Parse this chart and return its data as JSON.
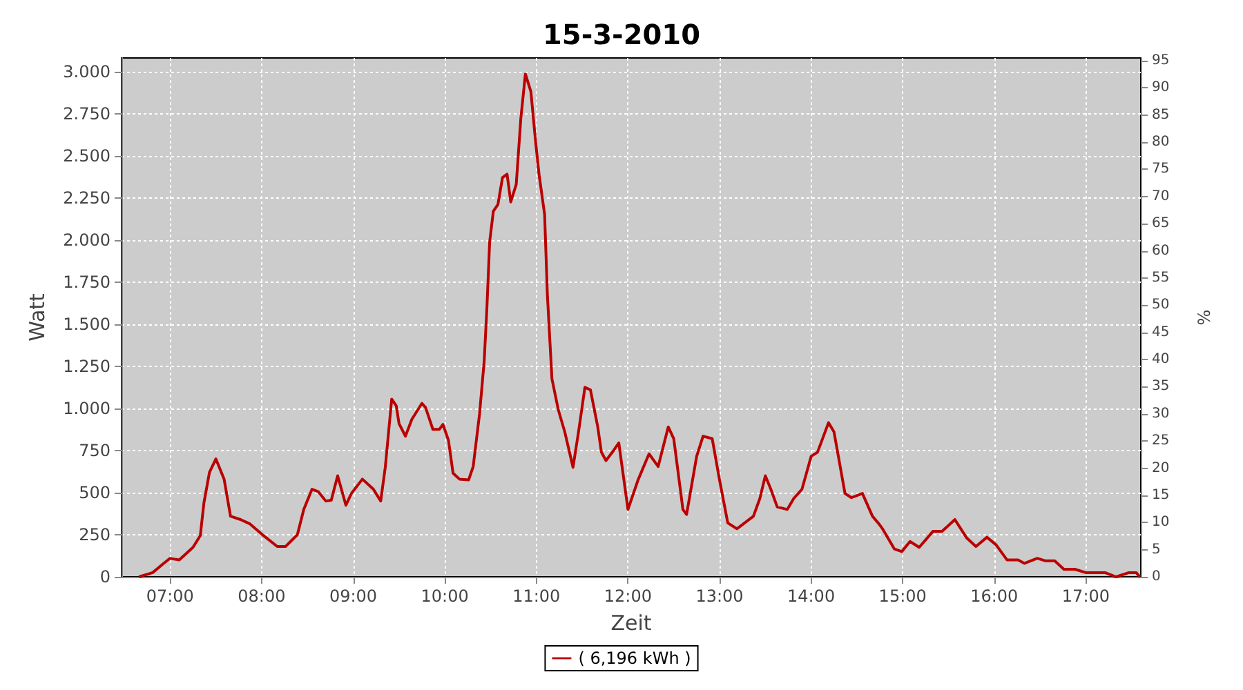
{
  "chart_data": {
    "type": "line",
    "title": "15-3-2010",
    "xlabel": "Zeit",
    "ylabel": "Watt",
    "y2label": "%",
    "xlim": [
      6.47,
      17.6
    ],
    "xticks": [
      {
        "value": 7,
        "label": "07:00"
      },
      {
        "value": 8,
        "label": "08:00"
      },
      {
        "value": 9,
        "label": "09:00"
      },
      {
        "value": 10,
        "label": "10:00"
      },
      {
        "value": 11,
        "label": "11:00"
      },
      {
        "value": 12,
        "label": "12:00"
      },
      {
        "value": 13,
        "label": "13:00"
      },
      {
        "value": 14,
        "label": "14:00"
      },
      {
        "value": 15,
        "label": "15:00"
      },
      {
        "value": 16,
        "label": "16:00"
      },
      {
        "value": 17,
        "label": "17:00"
      }
    ],
    "ylim": [
      0,
      3080
    ],
    "yticks": [
      0,
      250,
      500,
      750,
      {
        "value": 1000,
        "label": "1.000"
      },
      {
        "value": 1250,
        "label": "1.250"
      },
      {
        "value": 1500,
        "label": "1.500"
      },
      {
        "value": 1750,
        "label": "1.750"
      },
      {
        "value": 2000,
        "label": "2.000"
      },
      {
        "value": 2250,
        "label": "2.250"
      },
      {
        "value": 2500,
        "label": "2.500"
      },
      {
        "value": 2750,
        "label": "2.750"
      },
      {
        "value": 3000,
        "label": "3.000"
      }
    ],
    "y2lim": [
      0,
      95.5
    ],
    "y2ticks": [
      0,
      5,
      10,
      15,
      20,
      25,
      30,
      35,
      40,
      45,
      50,
      55,
      60,
      65,
      70,
      75,
      80,
      85,
      90,
      95
    ],
    "grid": true,
    "legend": "bottom",
    "marker": "none",
    "line_style": "solid",
    "series": [
      {
        "name": "( 6,196 kWh )",
        "color": "#bb0000",
        "x": [
          6.66,
          6.81,
          6.93,
          7.0,
          7.1,
          7.25,
          7.33,
          7.37,
          7.43,
          7.5,
          7.59,
          7.66,
          7.77,
          7.87,
          8.02,
          8.17,
          8.26,
          8.39,
          8.46,
          8.55,
          8.62,
          8.7,
          8.76,
          8.83,
          8.92,
          8.98,
          9.1,
          9.22,
          9.3,
          9.35,
          9.42,
          9.47,
          9.5,
          9.57,
          9.64,
          9.75,
          9.79,
          9.87,
          9.94,
          9.98,
          10.04,
          10.09,
          10.16,
          10.26,
          10.31,
          10.38,
          10.43,
          10.46,
          10.49,
          10.53,
          10.58,
          10.63,
          10.68,
          10.72,
          10.78,
          10.83,
          10.88,
          10.94,
          10.99,
          11.03,
          11.09,
          11.12,
          11.17,
          11.24,
          11.31,
          11.4,
          11.46,
          11.53,
          11.59,
          11.67,
          11.71,
          11.76,
          11.83,
          11.9,
          12.0,
          12.11,
          12.23,
          12.33,
          12.44,
          12.5,
          12.6,
          12.64,
          12.75,
          12.82,
          12.92,
          13.0,
          13.09,
          13.19,
          13.37,
          13.44,
          13.5,
          13.56,
          13.63,
          13.74,
          13.81,
          13.9,
          14.0,
          14.07,
          14.19,
          14.25,
          14.37,
          14.44,
          14.56,
          14.67,
          14.74,
          14.78,
          14.91,
          14.99,
          15.08,
          15.18,
          15.33,
          15.43,
          15.57,
          15.7,
          15.8,
          15.92,
          16.02,
          16.14,
          16.26,
          16.33,
          16.47,
          16.56,
          16.66,
          16.76,
          16.88,
          17.0,
          17.21,
          17.33,
          17.47,
          17.55,
          17.59
        ],
        "values": [
          0,
          25,
          80,
          110,
          100,
          175,
          245,
          440,
          620,
          700,
          580,
          360,
          340,
          315,
          245,
          180,
          180,
          250,
          400,
          520,
          505,
          450,
          455,
          600,
          425,
          495,
          580,
          520,
          450,
          650,
          1055,
          1015,
          910,
          835,
          935,
          1030,
          1005,
          875,
          875,
          905,
          810,
          615,
          580,
          575,
          655,
          970,
          1280,
          1600,
          1990,
          2170,
          2210,
          2370,
          2390,
          2225,
          2330,
          2720,
          2985,
          2880,
          2590,
          2385,
          2150,
          1675,
          1175,
          990,
          860,
          650,
          860,
          1125,
          1110,
          890,
          740,
          690,
          740,
          795,
          400,
          575,
          730,
          655,
          890,
          820,
          400,
          370,
          715,
          835,
          820,
          575,
          320,
          285,
          360,
          465,
          600,
          520,
          415,
          400,
          465,
          520,
          715,
          740,
          915,
          860,
          495,
          470,
          495,
          360,
          315,
          285,
          165,
          150,
          210,
          175,
          270,
          270,
          340,
          230,
          180,
          235,
          190,
          100,
          100,
          80,
          110,
          95,
          95,
          45,
          45,
          25,
          25,
          0,
          25,
          25,
          0
        ]
      }
    ]
  }
}
